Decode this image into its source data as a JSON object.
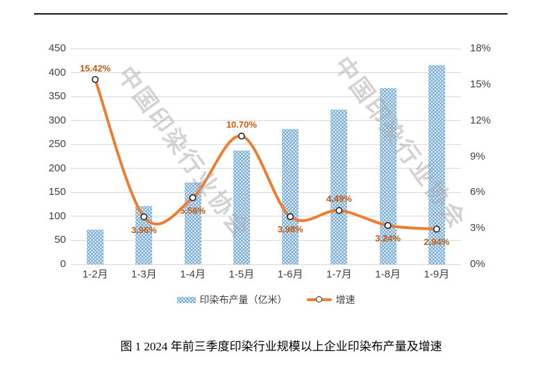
{
  "chart_data": {
    "type": "bar",
    "subtype": "bar-line-combo",
    "categories": [
      "1-2月",
      "1-3月",
      "1-4月",
      "1-5月",
      "1-6月",
      "1-7月",
      "1-8月",
      "1-9月"
    ],
    "series": [
      {
        "name": "印染布产量（亿米）",
        "type": "bar",
        "axis": "left",
        "color": "#7aaed8",
        "values": [
          73,
          122,
          171,
          237,
          282,
          322,
          367,
          415
        ]
      },
      {
        "name": "增速",
        "type": "line",
        "axis": "right",
        "color": "#ed7d31",
        "values": [
          15.42,
          3.96,
          5.56,
          10.7,
          3.98,
          4.49,
          3.24,
          2.94
        ],
        "point_labels": [
          "15.42%",
          "3.96%",
          "5.56%",
          "10.70%",
          "3.98%",
          "4.49%",
          "3.24%",
          "2.94%"
        ],
        "label_positions": [
          "above",
          "below",
          "below",
          "above",
          "below",
          "above",
          "below",
          "below"
        ]
      }
    ],
    "left_axis": {
      "min": 0,
      "max": 450,
      "step": 50,
      "tick_labels": [
        "0",
        "50",
        "100",
        "150",
        "200",
        "250",
        "300",
        "350",
        "400",
        "450"
      ]
    },
    "right_axis": {
      "min": 0,
      "max": 18,
      "step": 3,
      "tick_labels": [
        "0%",
        "3%",
        "6%",
        "9%",
        "12%",
        "15%",
        "18%"
      ]
    },
    "grid": "horizontal",
    "legend_position": "bottom",
    "caption": "图 1 2024 年前三季度印染行业规模以上企业印染布产量及增速",
    "watermark": {
      "text": "中国印染行业协会"
    },
    "colors": {
      "bar_fill": "#7aaed8",
      "line": "#ed7d31",
      "data_label": "#c55a11",
      "gridline": "#d9d9d9",
      "axis_text": "#3f3f3f",
      "watermark": "#a9a9a9"
    }
  }
}
